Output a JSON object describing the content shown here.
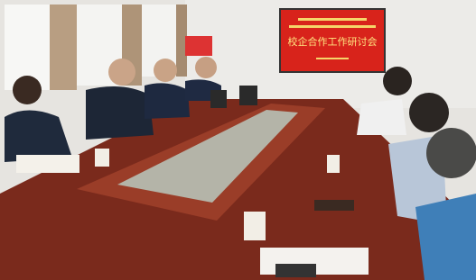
{
  "screen": {
    "title": "校企合作工作研讨会"
  }
}
